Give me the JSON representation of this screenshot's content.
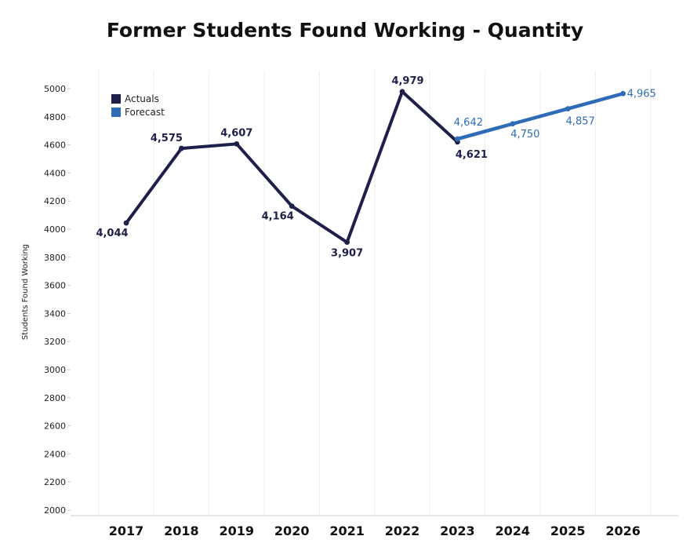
{
  "chart_data": {
    "type": "line",
    "title": "Former Students Found Working - Quantity",
    "xlabel": "",
    "ylabel": "Students Found Working",
    "x": [
      "2017",
      "2018",
      "2019",
      "2020",
      "2021",
      "2022",
      "2023",
      "2024",
      "2025",
      "2026"
    ],
    "ylim": [
      2000,
      5100
    ],
    "yticks": [
      2000,
      2200,
      2400,
      2600,
      2800,
      3000,
      3200,
      3400,
      3600,
      3800,
      4000,
      4200,
      4400,
      4600,
      4800,
      5000
    ],
    "grid": "vertical",
    "legend_position": "top-left",
    "series": [
      {
        "name": "Actuals",
        "color": "#1e1f4b",
        "x": [
          "2017",
          "2018",
          "2019",
          "2020",
          "2021",
          "2022",
          "2023"
        ],
        "values": [
          4044,
          4575,
          4607,
          4164,
          3907,
          4979,
          4621
        ],
        "labels": [
          "4,044",
          "4,575",
          "4,607",
          "4,164",
          "3,907",
          "4,979",
          "4,621"
        ]
      },
      {
        "name": "Forecast",
        "color": "#2e6cb8",
        "x": [
          "2023",
          "2024",
          "2025",
          "2026"
        ],
        "values": [
          4642,
          4750,
          4857,
          4965
        ],
        "labels": [
          "4,642",
          "4,750",
          "4,857",
          "4,965"
        ]
      }
    ]
  }
}
